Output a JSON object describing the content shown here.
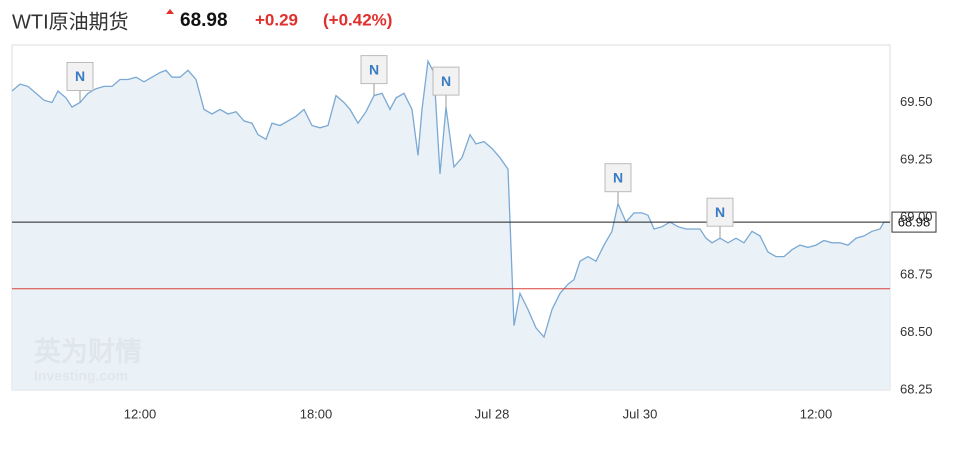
{
  "chart_data": {
    "type": "area",
    "title": "WTI原油期货",
    "price": "68.98",
    "change": "+0.29",
    "change_percent": "(+0.42%)",
    "watermark": [
      "英为财情",
      "Investing.com"
    ],
    "x": [
      0,
      1,
      2,
      3,
      4,
      5,
      5.75,
      6.75,
      7.5,
      8.5,
      9.5,
      10.5,
      11.5,
      12.5,
      13.5,
      14.5,
      15.5,
      16.5,
      17.5,
      18.5,
      19.25,
      20,
      21,
      22,
      23,
      24,
      25,
      26,
      27,
      28,
      29,
      30,
      30.75,
      31.75,
      32.5,
      33.5,
      34.5,
      35.5,
      36.5,
      37.5,
      38.5,
      39.5,
      40.5,
      41.5,
      42.25,
      43.25,
      44.25,
      45.25,
      46.25,
      47.25,
      48,
      49,
      50,
      50.75,
      51.25,
      52,
      52.75,
      53.5,
      54.25,
      55.25,
      56.25,
      57.25,
      58,
      59,
      60,
      61,
      62,
      62.75,
      63.5,
      64.5,
      65.5,
      66.5,
      67.5,
      68.5,
      69.5,
      70.25,
      71,
      72,
      73,
      74,
      75,
      75.75,
      76.75,
      77.75,
      78.75,
      79.5,
      80.25,
      81.25,
      82.25,
      83.25,
      84.25,
      85.25,
      86,
      86.75,
      87.5,
      88.5,
      89.5,
      90.5,
      91.5,
      92.5,
      93.5,
      94.5,
      95.5,
      96.5,
      97.5,
      98.5,
      99.5,
      100.5,
      101.5,
      102.5,
      103.5,
      104.5,
      105.5,
      106.5,
      107.5,
      108.5,
      109,
      109.75
    ],
    "values": [
      69.55,
      69.58,
      69.57,
      69.54,
      69.51,
      69.5,
      69.55,
      69.52,
      69.48,
      69.5,
      69.54,
      69.56,
      69.57,
      69.57,
      69.6,
      69.6,
      69.61,
      69.59,
      69.61,
      69.63,
      69.64,
      69.61,
      69.61,
      69.64,
      69.6,
      69.47,
      69.45,
      69.47,
      69.45,
      69.46,
      69.42,
      69.41,
      69.36,
      69.34,
      69.41,
      69.4,
      69.42,
      69.44,
      69.47,
      69.4,
      69.39,
      69.4,
      69.53,
      69.5,
      69.47,
      69.41,
      69.46,
      69.53,
      69.54,
      69.47,
      69.52,
      69.54,
      69.47,
      69.27,
      69.47,
      69.68,
      69.63,
      69.19,
      69.48,
      69.22,
      69.26,
      69.36,
      69.32,
      69.33,
      69.3,
      69.26,
      69.21,
      68.53,
      68.67,
      68.6,
      68.52,
      68.48,
      68.6,
      68.67,
      68.71,
      68.73,
      68.81,
      68.83,
      68.81,
      68.88,
      68.94,
      69.06,
      68.98,
      69.02,
      69.02,
      69.01,
      68.95,
      68.96,
      68.98,
      68.96,
      68.95,
      68.95,
      68.95,
      68.91,
      68.89,
      68.91,
      68.89,
      68.91,
      68.89,
      68.94,
      68.92,
      68.85,
      68.83,
      68.83,
      68.86,
      68.88,
      68.87,
      68.88,
      68.9,
      68.89,
      68.89,
      68.88,
      68.91,
      68.92,
      68.94,
      68.95,
      68.98,
      68.98
    ],
    "color": "#7ba9d3",
    "fill": "#e6eef6",
    "xlim": [
      0,
      109.75
    ],
    "xticks": [
      {
        "value": 16,
        "label": "12:00"
      },
      {
        "value": 38,
        "label": "18:00"
      },
      {
        "value": 60,
        "label": "Jul 28"
      },
      {
        "value": 78.5,
        "label": "Jul 30"
      },
      {
        "value": 100.5,
        "label": "12:00"
      }
    ],
    "ylim": [
      68.25,
      69.75
    ],
    "yticks": [
      68.25,
      {
        "value": 68.5,
        "label": "68.50"
      },
      68.75,
      {
        "value": 69,
        "label": "69.00"
      },
      69.25,
      {
        "value": 69.5,
        "label": "69.50"
      }
    ],
    "reference_lines": [
      {
        "value": 68.98,
        "color": "#222222",
        "boxed": true
      },
      {
        "value": 68.69,
        "color": "#d9403a",
        "boxed": false
      }
    ],
    "news": [
      {
        "x": 8.5,
        "label": "N"
      },
      {
        "x": 45.25,
        "label": "N"
      },
      {
        "x": 54.25,
        "label": "N"
      },
      {
        "x": 75.75,
        "label": "N"
      },
      {
        "x": 88.5,
        "label": "N"
      }
    ]
  }
}
